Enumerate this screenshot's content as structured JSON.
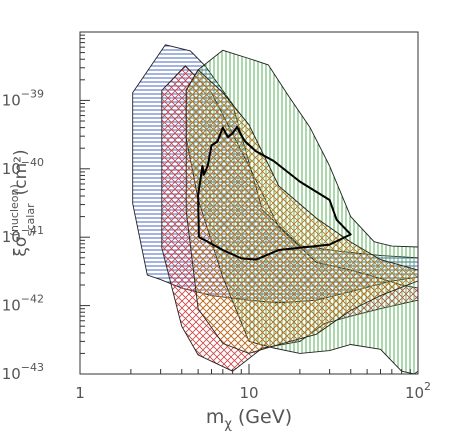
{
  "chart_data": {
    "type": "area",
    "title": "",
    "xlabel": "m",
    "xlabel_sub": "χ",
    "xlabel_unit": "(GeV)",
    "ylabel": "ξσ",
    "ylabel_sup": "(nucleon)",
    "ylabel_sub": "scalar",
    "ylabel_unit": "(cm²)",
    "x_scale": "log",
    "y_scale": "log",
    "xlim": [
      1,
      100
    ],
    "ylim": [
      1e-43,
      1e-38
    ],
    "grid": false,
    "x_ticks": [
      {
        "value": 1,
        "base": "1",
        "exp": ""
      },
      {
        "value": 10,
        "base": "10",
        "exp": ""
      },
      {
        "value": 100,
        "base": "10",
        "exp": "2"
      }
    ],
    "y_ticks": [
      {
        "value": 1e-43,
        "base": "10",
        "exp": "−43"
      },
      {
        "value": 1e-42,
        "base": "10",
        "exp": "−42"
      },
      {
        "value": 1e-41,
        "base": "10",
        "exp": "−41"
      },
      {
        "value": 1e-40,
        "base": "10",
        "exp": "−40"
      },
      {
        "value": 1e-39,
        "base": "10",
        "exp": "−39"
      }
    ],
    "regions": [
      {
        "style": "hatch-horizontal",
        "color": "#3355bb",
        "points": [
          [
            2.05,
            1.3e-39
          ],
          [
            3.2,
            6.5e-39
          ],
          [
            4.5,
            5.3e-39
          ],
          [
            5.5,
            3.2e-39
          ],
          [
            8,
            8.8e-40
          ],
          [
            12,
            2.5e-41
          ],
          [
            20,
            7.5e-42
          ],
          [
            35,
            6.2e-42
          ],
          [
            60,
            5.4e-42
          ],
          [
            100,
            5e-42
          ],
          [
            100,
            2.6e-42
          ],
          [
            70,
            2.3e-42
          ],
          [
            40,
            1.6e-42
          ],
          [
            25,
            1.2e-42
          ],
          [
            15,
            1.1e-42
          ],
          [
            10,
            1.2e-42
          ],
          [
            6,
            1.4e-42
          ],
          [
            4,
            1.8e-42
          ],
          [
            3,
            2.4e-42
          ],
          [
            2.5,
            2.8e-42
          ],
          [
            2.05,
            3.1e-41
          ],
          [
            2.05,
            1.4e-40
          ]
        ]
      },
      {
        "style": "hatch-crosshatch",
        "color": "#cc4444",
        "points": [
          [
            3.05,
            1.4e-39
          ],
          [
            4.2,
            3.2e-39
          ],
          [
            6,
            1.3e-39
          ],
          [
            10,
            1.1e-40
          ],
          [
            15,
            1.4e-41
          ],
          [
            25,
            4.3e-42
          ],
          [
            40,
            3.3e-42
          ],
          [
            60,
            2.5e-42
          ],
          [
            80,
            2e-42
          ],
          [
            100,
            1.8e-42
          ],
          [
            100,
            1.2e-42
          ],
          [
            60,
            9e-43
          ],
          [
            40,
            7e-43
          ],
          [
            28,
            5.5e-43
          ],
          [
            20,
            3e-43
          ],
          [
            12,
            2.4e-43
          ],
          [
            8,
            1.1e-43
          ],
          [
            5,
            1.9e-43
          ],
          [
            4,
            5e-43
          ],
          [
            3.05,
            7e-42
          ]
        ]
      },
      {
        "style": "hatch-vertical",
        "color": "#44aa44",
        "points": [
          [
            4.25,
            1.4e-39
          ],
          [
            5,
            2.8e-39
          ],
          [
            7,
            5.4e-39
          ],
          [
            10,
            4.1e-39
          ],
          [
            13,
            3.3e-39
          ],
          [
            17,
            1.2e-39
          ],
          [
            23,
            4e-40
          ],
          [
            30,
            1.1e-40
          ],
          [
            40,
            2e-41
          ],
          [
            55,
            8.6e-42
          ],
          [
            70,
            7.4e-42
          ],
          [
            100,
            7.2e-42
          ],
          [
            100,
            1.1e-43
          ],
          [
            95,
            1e-43
          ],
          [
            80,
            1.1e-43
          ],
          [
            60,
            2.3e-43
          ],
          [
            40,
            2.7e-43
          ],
          [
            30,
            2.2e-43
          ],
          [
            20,
            2e-43
          ],
          [
            14,
            2.4e-43
          ],
          [
            10,
            3e-43
          ],
          [
            7,
            2.6e-42
          ],
          [
            5,
            3.6e-41
          ],
          [
            4.25,
            2.8e-40
          ]
        ]
      },
      {
        "style": "hatch-crosshatch",
        "color": "#bb7722",
        "points": [
          [
            4.25,
            1.4e-39
          ],
          [
            5,
            2.8e-39
          ],
          [
            7,
            1.3e-39
          ],
          [
            10,
            4.4e-40
          ],
          [
            15,
            5.6e-41
          ],
          [
            25,
            1.9e-41
          ],
          [
            40,
            8.5e-42
          ],
          [
            60,
            4.7e-42
          ],
          [
            100,
            3.3e-42
          ],
          [
            100,
            2.3e-42
          ],
          [
            60,
            1.4e-42
          ],
          [
            40,
            8.5e-43
          ],
          [
            25,
            3.8e-43
          ],
          [
            15,
            2.7e-43
          ],
          [
            10,
            2e-43
          ],
          [
            7,
            2.8e-43
          ],
          [
            5,
            9e-43
          ],
          [
            4.25,
            2.4e-41
          ]
        ]
      }
    ],
    "contour": {
      "points": [
        [
          5.05,
          1e-41
        ],
        [
          5,
          4.1e-41
        ],
        [
          5.3,
          1.1e-40
        ],
        [
          5.4,
          8.2e-41
        ],
        [
          5.7,
          1.1e-40
        ],
        [
          6,
          2.2e-40
        ],
        [
          6.5,
          2.5e-40
        ],
        [
          7,
          4e-40
        ],
        [
          7.5,
          2.9e-40
        ],
        [
          8,
          3.3e-40
        ],
        [
          8.5,
          4.1e-40
        ],
        [
          9,
          3.1e-40
        ],
        [
          9.5,
          2.5e-40
        ],
        [
          11,
          1.8e-40
        ],
        [
          14,
          1.3e-40
        ],
        [
          20,
          6.5e-41
        ],
        [
          30,
          3.5e-41
        ],
        [
          33,
          1.8e-41
        ],
        [
          40,
          1.1e-41
        ],
        [
          30,
          7.8e-42
        ],
        [
          20,
          7e-42
        ],
        [
          15,
          6.5e-42
        ],
        [
          11,
          4.7e-42
        ],
        [
          9,
          4.9e-42
        ],
        [
          7,
          6.5e-42
        ],
        [
          5.5,
          9e-42
        ],
        [
          5.05,
          1e-41
        ]
      ]
    }
  }
}
